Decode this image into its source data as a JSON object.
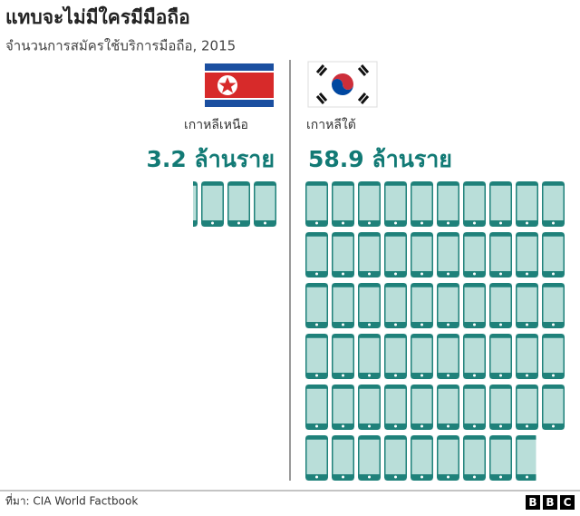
{
  "chart_data": {
    "type": "pictogram",
    "title": "แทบจะไม่มีใครมีมือถือ",
    "subtitle": "จำนวนการสมัครใช้บริการมือถือ, 2015",
    "categories": [
      "เกาหลีเหนือ",
      "เกาหลีใต้"
    ],
    "values": [
      3.2,
      58.9
    ],
    "value_labels": [
      "3.2 ล้านราย",
      "58.9 ล้านราย"
    ],
    "color": "#b9ded9",
    "edge_color": "#1f817a"
  },
  "source": "ที่มา: CIA World Factbook",
  "logo": [
    "B",
    "B",
    "C"
  ]
}
